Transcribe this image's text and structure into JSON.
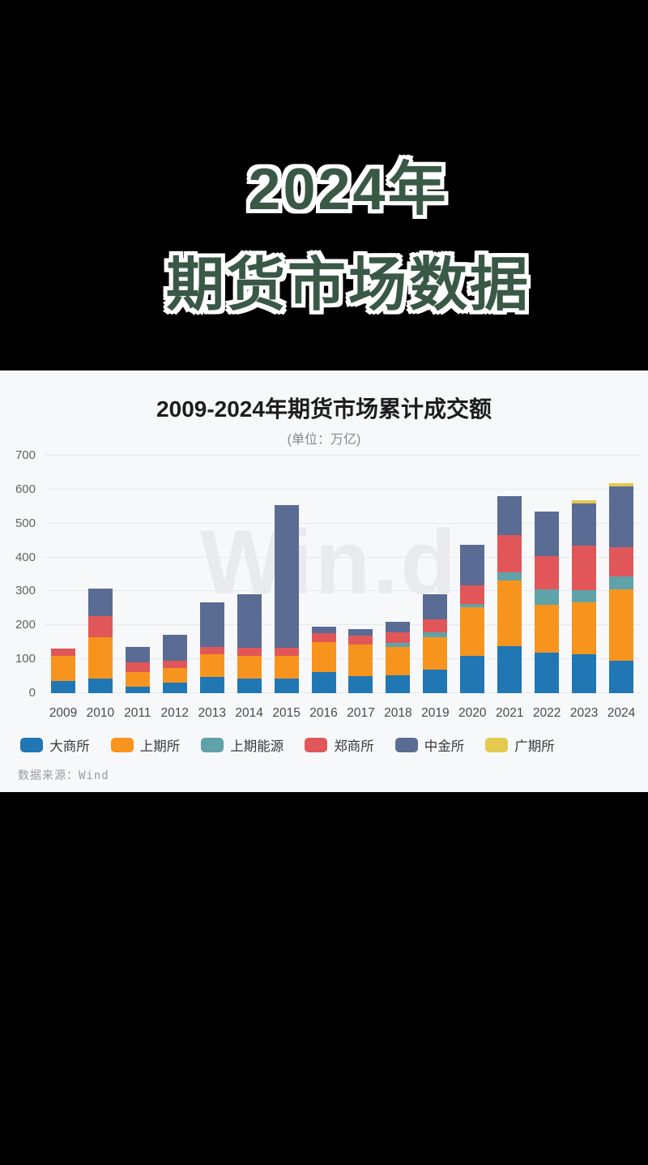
{
  "header": {
    "line1": "2024年",
    "line2": "期货市场数据"
  },
  "panel": {
    "title": "2009-2024年期货市场累计成交额",
    "subtitle": "(单位：万亿)",
    "watermark": "Win.d",
    "source": "数据来源：Wind"
  },
  "chart_data": {
    "type": "bar",
    "stacked": true,
    "title": "2009-2024年期货市场累计成交额",
    "unit": "万亿",
    "categories": [
      "2009",
      "2010",
      "2011",
      "2012",
      "2013",
      "2014",
      "2015",
      "2016",
      "2017",
      "2018",
      "2019",
      "2020",
      "2021",
      "2022",
      "2023",
      "2024"
    ],
    "series": [
      {
        "name": "大商所",
        "color": "#2077B4",
        "values": [
          37,
          42,
          18,
          31,
          47,
          42,
          44,
          61,
          50,
          52,
          69,
          110,
          139,
          120,
          115,
          96
        ]
      },
      {
        "name": "上期所",
        "color": "#F7941E",
        "values": [
          74,
          123,
          44,
          44,
          68,
          69,
          65,
          90,
          93,
          84,
          97,
          143,
          194,
          141,
          152,
          211
        ]
      },
      {
        "name": "上期能源",
        "color": "#5FA2A9",
        "values": [
          0,
          0,
          0,
          0,
          0,
          0,
          0,
          0,
          0,
          13,
          14,
          10,
          22,
          44,
          36,
          36
        ]
      },
      {
        "name": "郑商所",
        "color": "#E15759",
        "values": [
          20,
          62,
          30,
          20,
          22,
          24,
          25,
          26,
          26,
          31,
          38,
          56,
          112,
          99,
          131,
          87
        ]
      },
      {
        "name": "中金所",
        "color": "#5A6B94",
        "values": [
          0,
          82,
          45,
          76,
          130,
          157,
          420,
          18,
          19,
          30,
          73,
          118,
          114,
          131,
          126,
          180
        ]
      },
      {
        "name": "广期所",
        "color": "#E3C94F",
        "values": [
          0,
          0,
          0,
          0,
          0,
          0,
          0,
          0,
          0,
          0,
          0,
          0,
          0,
          0,
          8,
          10
        ]
      }
    ],
    "totals": [
      131,
      309,
      137,
      171,
      267,
      292,
      554,
      195,
      188,
      210,
      291,
      437,
      581,
      535,
      568,
      620
    ],
    "ylim": [
      0,
      700
    ],
    "yticks": [
      0,
      100,
      200,
      300,
      400,
      500,
      600,
      700
    ],
    "grid": true,
    "legend_position": "bottom"
  },
  "colors": {
    "hero_text": "#3A5846",
    "hero_outline": "#FFFFFF",
    "panel_bg": "#F7F8FA",
    "gridline": "#E7E8EB",
    "watermark_color": "#E9EAED"
  }
}
